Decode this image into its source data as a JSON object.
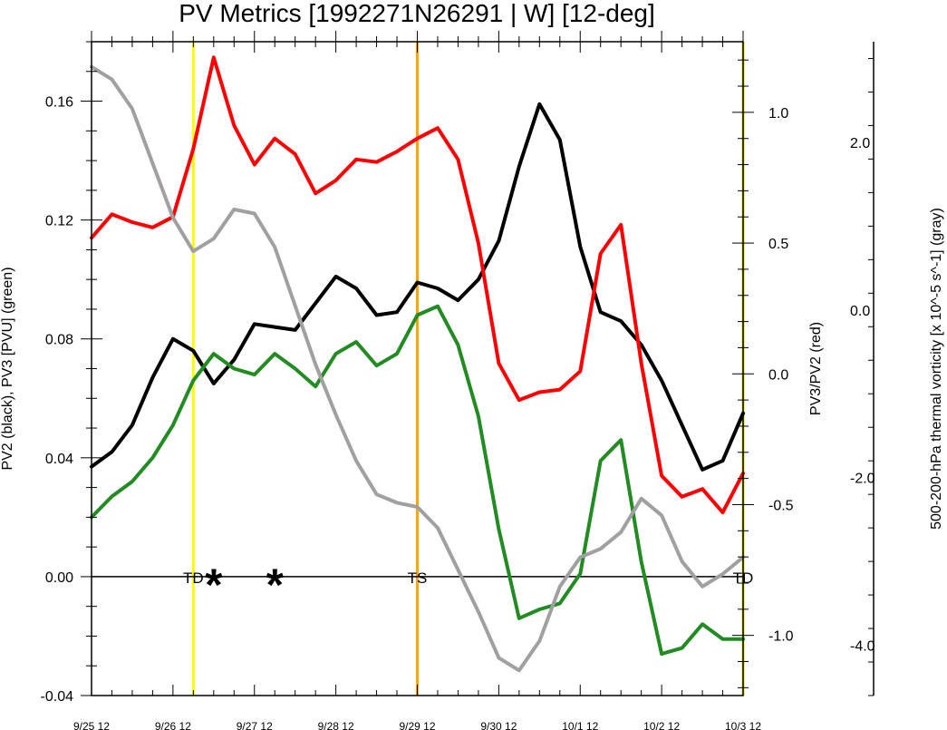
{
  "chart_data": {
    "type": "line",
    "title": "PV Metrics [1992271N26291 | W] [12-deg]",
    "x_tick_labels": [
      "9/25 12",
      "9/26 12",
      "9/27 12",
      "9/28 12",
      "9/29 12",
      "9/30 12",
      "10/1 12",
      "10/2 12",
      "10/3 12"
    ],
    "x_units": "days since 9/25 12",
    "x_range": [
      0,
      8
    ],
    "left_axis": {
      "label": "PV2 (black), PV3 [PVU] (green)",
      "range": [
        -0.04,
        0.18
      ],
      "tick_labels": [
        "-0.04",
        "0.00",
        "0.04",
        "0.08",
        "0.12",
        "0.16"
      ],
      "tick_values": [
        -0.04,
        0.0,
        0.04,
        0.08,
        0.12,
        0.16
      ]
    },
    "right_axis": {
      "label": "PV3/PV2 (red)",
      "range": [
        -1.23,
        1.27
      ],
      "tick_labels": [
        "-1.0",
        "-0.5",
        "0.0",
        "0.5",
        "1.0"
      ],
      "tick_values": [
        -1.0,
        -0.5,
        0.0,
        0.5,
        1.0
      ]
    },
    "far_right_axis": {
      "label": "500-200-hPa thermal vorticity [x 10^-5 s^-1] (gray)",
      "range": [
        -4.6,
        3.2
      ],
      "tick_labels": [
        "-4.0",
        "-2.0",
        "0.0",
        "2.0"
      ],
      "tick_values": [
        -4.0,
        -2.0,
        0.0,
        2.0
      ]
    },
    "series": [
      {
        "name": "PV2",
        "axis": "left",
        "color": "#000000",
        "x": [
          0,
          0.25,
          0.5,
          0.75,
          1,
          1.25,
          1.5,
          1.75,
          2,
          2.25,
          2.5,
          2.75,
          3,
          3.25,
          3.5,
          3.75,
          4,
          4.25,
          4.5,
          4.75,
          5,
          5.25,
          5.5,
          5.75,
          6,
          6.25,
          6.5,
          6.75,
          7,
          7.25,
          7.5,
          7.75,
          8
        ],
        "values": [
          0.037,
          0.042,
          0.051,
          0.067,
          0.08,
          0.076,
          0.065,
          0.073,
          0.085,
          0.084,
          0.083,
          0.092,
          0.101,
          0.097,
          0.088,
          0.089,
          0.099,
          0.097,
          0.093,
          0.1,
          0.113,
          0.138,
          0.159,
          0.147,
          0.111,
          0.089,
          0.086,
          0.078,
          0.066,
          0.051,
          0.036,
          0.039,
          0.055
        ]
      },
      {
        "name": "PV3",
        "axis": "left",
        "color": "#228b22",
        "x": [
          0,
          0.25,
          0.5,
          0.75,
          1,
          1.25,
          1.5,
          1.75,
          2,
          2.25,
          2.5,
          2.75,
          3,
          3.25,
          3.5,
          3.75,
          4,
          4.25,
          4.5,
          4.75,
          5,
          5.25,
          5.5,
          5.75,
          6,
          6.25,
          6.5,
          6.75,
          7,
          7.25,
          7.5,
          7.75,
          8
        ],
        "values": [
          0.02,
          0.027,
          0.032,
          0.04,
          0.051,
          0.066,
          0.075,
          0.07,
          0.068,
          0.075,
          0.07,
          0.064,
          0.075,
          0.079,
          0.071,
          0.075,
          0.088,
          0.091,
          0.078,
          0.054,
          0.016,
          -0.014,
          -0.011,
          -0.009,
          0.001,
          0.039,
          0.046,
          0.005,
          -0.026,
          -0.024,
          -0.016,
          -0.021,
          -0.021
        ]
      },
      {
        "name": "PV3/PV2",
        "axis": "right",
        "color": "#ff0000",
        "x": [
          0,
          0.25,
          0.5,
          0.75,
          1,
          1.25,
          1.5,
          1.75,
          2,
          2.25,
          2.5,
          2.75,
          3,
          3.25,
          3.5,
          3.75,
          4,
          4.25,
          4.5,
          4.75,
          5,
          5.25,
          5.5,
          5.75,
          6,
          6.25,
          6.5,
          6.75,
          7,
          7.25,
          7.5,
          7.75,
          8
        ],
        "values": [
          0.52,
          0.61,
          0.58,
          0.56,
          0.6,
          0.86,
          1.21,
          0.95,
          0.8,
          0.9,
          0.84,
          0.69,
          0.74,
          0.82,
          0.81,
          0.85,
          0.9,
          0.94,
          0.82,
          0.5,
          0.04,
          -0.1,
          -0.07,
          -0.06,
          0.01,
          0.46,
          0.57,
          0.04,
          -0.39,
          -0.47,
          -0.44,
          -0.53,
          -0.38
        ]
      },
      {
        "name": "500-200-hPa thermal vorticity",
        "axis": "far_right",
        "color": "#a0a0a0",
        "x": [
          0,
          0.25,
          0.5,
          0.75,
          1,
          1.25,
          1.5,
          1.75,
          2,
          2.25,
          2.5,
          2.75,
          3,
          3.25,
          3.5,
          3.75,
          4,
          4.25,
          4.5,
          4.75,
          5,
          5.25,
          5.5,
          5.75,
          6,
          6.25,
          6.5,
          6.75,
          7,
          7.25,
          7.5,
          7.75,
          8
        ],
        "values": [
          2.9,
          2.75,
          2.4,
          1.75,
          1.1,
          0.7,
          0.85,
          1.2,
          1.15,
          0.75,
          0.05,
          -0.65,
          -1.25,
          -1.8,
          -2.2,
          -2.3,
          -2.35,
          -2.6,
          -3.1,
          -3.6,
          -4.15,
          -4.3,
          -3.95,
          -3.3,
          -2.95,
          -2.85,
          -2.65,
          -2.25,
          -2.45,
          -3.0,
          -3.3,
          -3.15,
          -2.95
        ]
      }
    ],
    "vertical_lines": [
      {
        "x": 1.25,
        "color": "#ffff00"
      },
      {
        "x": 4.0,
        "color": "#ffa500"
      },
      {
        "x": 8.0,
        "color": "#e0e000"
      }
    ],
    "stage_labels": [
      {
        "text": "TD",
        "x": 1.25
      },
      {
        "text": "TS",
        "x": 4.0
      },
      {
        "text": "TD",
        "x": 8.0
      }
    ],
    "markers": [
      {
        "symbol": "*",
        "x": 1.5
      },
      {
        "symbol": "*",
        "x": 2.25
      }
    ],
    "grid": false,
    "zero_line": true
  }
}
